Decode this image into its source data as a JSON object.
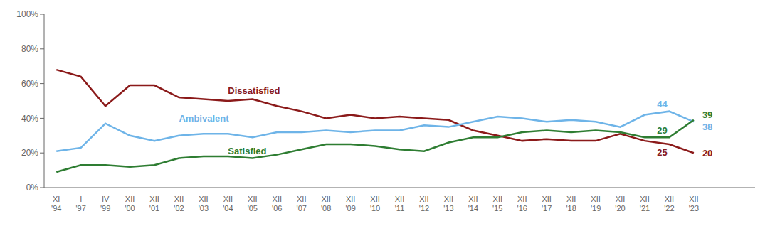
{
  "chart_data": {
    "type": "line",
    "categories": [
      "XI '94",
      "I '97",
      "IV '99",
      "XII '00",
      "XII '01",
      "XII '02",
      "XII '03",
      "XII '04",
      "XII '05",
      "XII '06",
      "XII '07",
      "XII '08",
      "XII '09",
      "XII '10",
      "XII '11",
      "XII '12",
      "XII '13",
      "XII '14",
      "XII '15",
      "XII '16",
      "XII '17",
      "XII '18",
      "XII '19",
      "XII '20",
      "XII '21",
      "XII '22",
      "XII '23"
    ],
    "series": [
      {
        "name": "Dissatisfied",
        "color": "#8B1A1A",
        "values": [
          68,
          64,
          47,
          59,
          59,
          52,
          51,
          50,
          51,
          47,
          44,
          40,
          42,
          40,
          41,
          40,
          39,
          33,
          30,
          27,
          28,
          27,
          27,
          31,
          27,
          25,
          20
        ],
        "value_labels": [
          null,
          null,
          null,
          null,
          null,
          null,
          null,
          null,
          null,
          null,
          null,
          null,
          null,
          null,
          null,
          null,
          null,
          null,
          null,
          null,
          null,
          null,
          null,
          null,
          null,
          "25",
          "20"
        ]
      },
      {
        "name": "Ambivalent",
        "color": "#6EB4E8",
        "values": [
          21,
          23,
          37,
          30,
          27,
          30,
          31,
          31,
          29,
          32,
          32,
          33,
          32,
          33,
          33,
          36,
          35,
          38,
          41,
          40,
          38,
          39,
          38,
          35,
          42,
          44,
          38
        ],
        "value_labels": [
          null,
          null,
          null,
          null,
          null,
          null,
          null,
          null,
          null,
          null,
          null,
          null,
          null,
          null,
          null,
          null,
          null,
          null,
          null,
          null,
          null,
          null,
          null,
          null,
          null,
          "44",
          "38"
        ]
      },
      {
        "name": "Satisfied",
        "color": "#2E7D32",
        "values": [
          9,
          13,
          13,
          12,
          13,
          17,
          18,
          18,
          17,
          19,
          22,
          25,
          25,
          24,
          22,
          21,
          26,
          29,
          29,
          32,
          33,
          32,
          33,
          32,
          29,
          29,
          39
        ],
        "value_labels": [
          null,
          null,
          null,
          null,
          null,
          null,
          null,
          null,
          null,
          null,
          null,
          null,
          null,
          null,
          null,
          null,
          null,
          null,
          null,
          null,
          null,
          null,
          null,
          null,
          null,
          "29",
          "39"
        ]
      }
    ],
    "annotations": [
      {
        "text": "Dissatisfied",
        "x": "XII '04",
        "y": 56,
        "color": "#8B1A1A"
      },
      {
        "text": "Ambivalent",
        "x": "XII '02",
        "y": 40,
        "color": "#6EB4E8"
      },
      {
        "text": "Satisfied",
        "x": "XII '04",
        "y": 21,
        "color": "#2E7D32"
      }
    ],
    "ylim": [
      0,
      100
    ],
    "yticks": [
      {
        "value": 0,
        "label": "0%"
      },
      {
        "value": 20,
        "label": "20%"
      },
      {
        "value": 40,
        "label": "40%"
      },
      {
        "value": 60,
        "label": "60%"
      },
      {
        "value": 80,
        "label": "80%"
      },
      {
        "value": 100,
        "label": "100%"
      }
    ],
    "grid": false
  }
}
